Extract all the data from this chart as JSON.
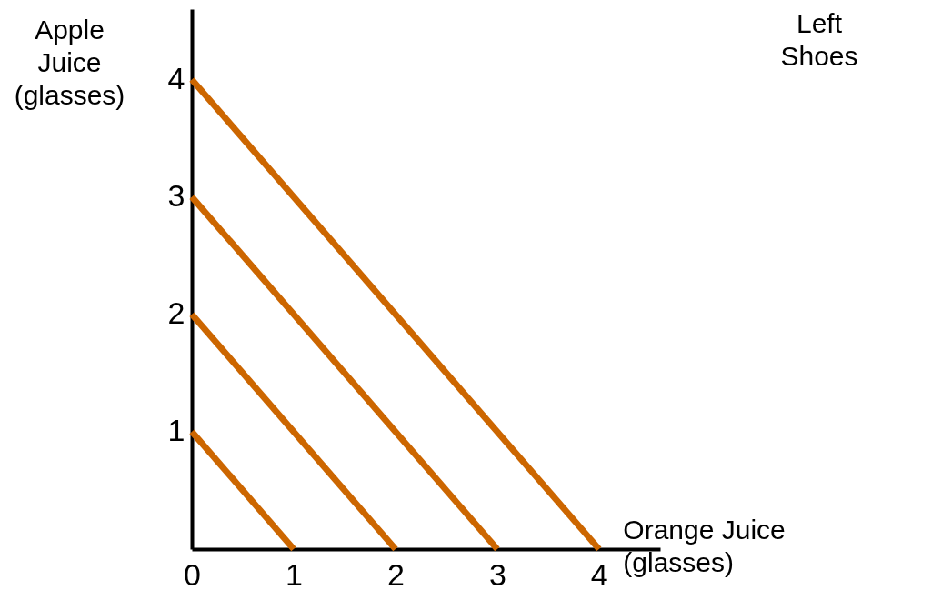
{
  "chart_data": {
    "type": "line",
    "xlabel": "Orange Juice (glasses)",
    "ylabel": "Apple Juice (glasses)",
    "annotations": [
      "Left Shoes"
    ],
    "series": [
      {
        "color": "#cc6600",
        "x": [
          0,
          1
        ],
        "values": [
          1,
          0
        ]
      },
      {
        "color": "#cc6600",
        "x": [
          0,
          2
        ],
        "values": [
          2,
          0
        ]
      },
      {
        "color": "#cc6600",
        "x": [
          0,
          3
        ],
        "values": [
          3,
          0
        ]
      },
      {
        "color": "#cc6600",
        "x": [
          0,
          4
        ],
        "values": [
          4,
          0
        ]
      }
    ],
    "xlim": [
      0,
      4.6
    ],
    "ylim": [
      0,
      4.6
    ],
    "xticks": [
      0,
      1,
      2,
      3,
      4
    ],
    "yticks": [
      1,
      2,
      3,
      4
    ],
    "grid": false,
    "legend": false,
    "marker": "none",
    "line_style": "solid"
  }
}
